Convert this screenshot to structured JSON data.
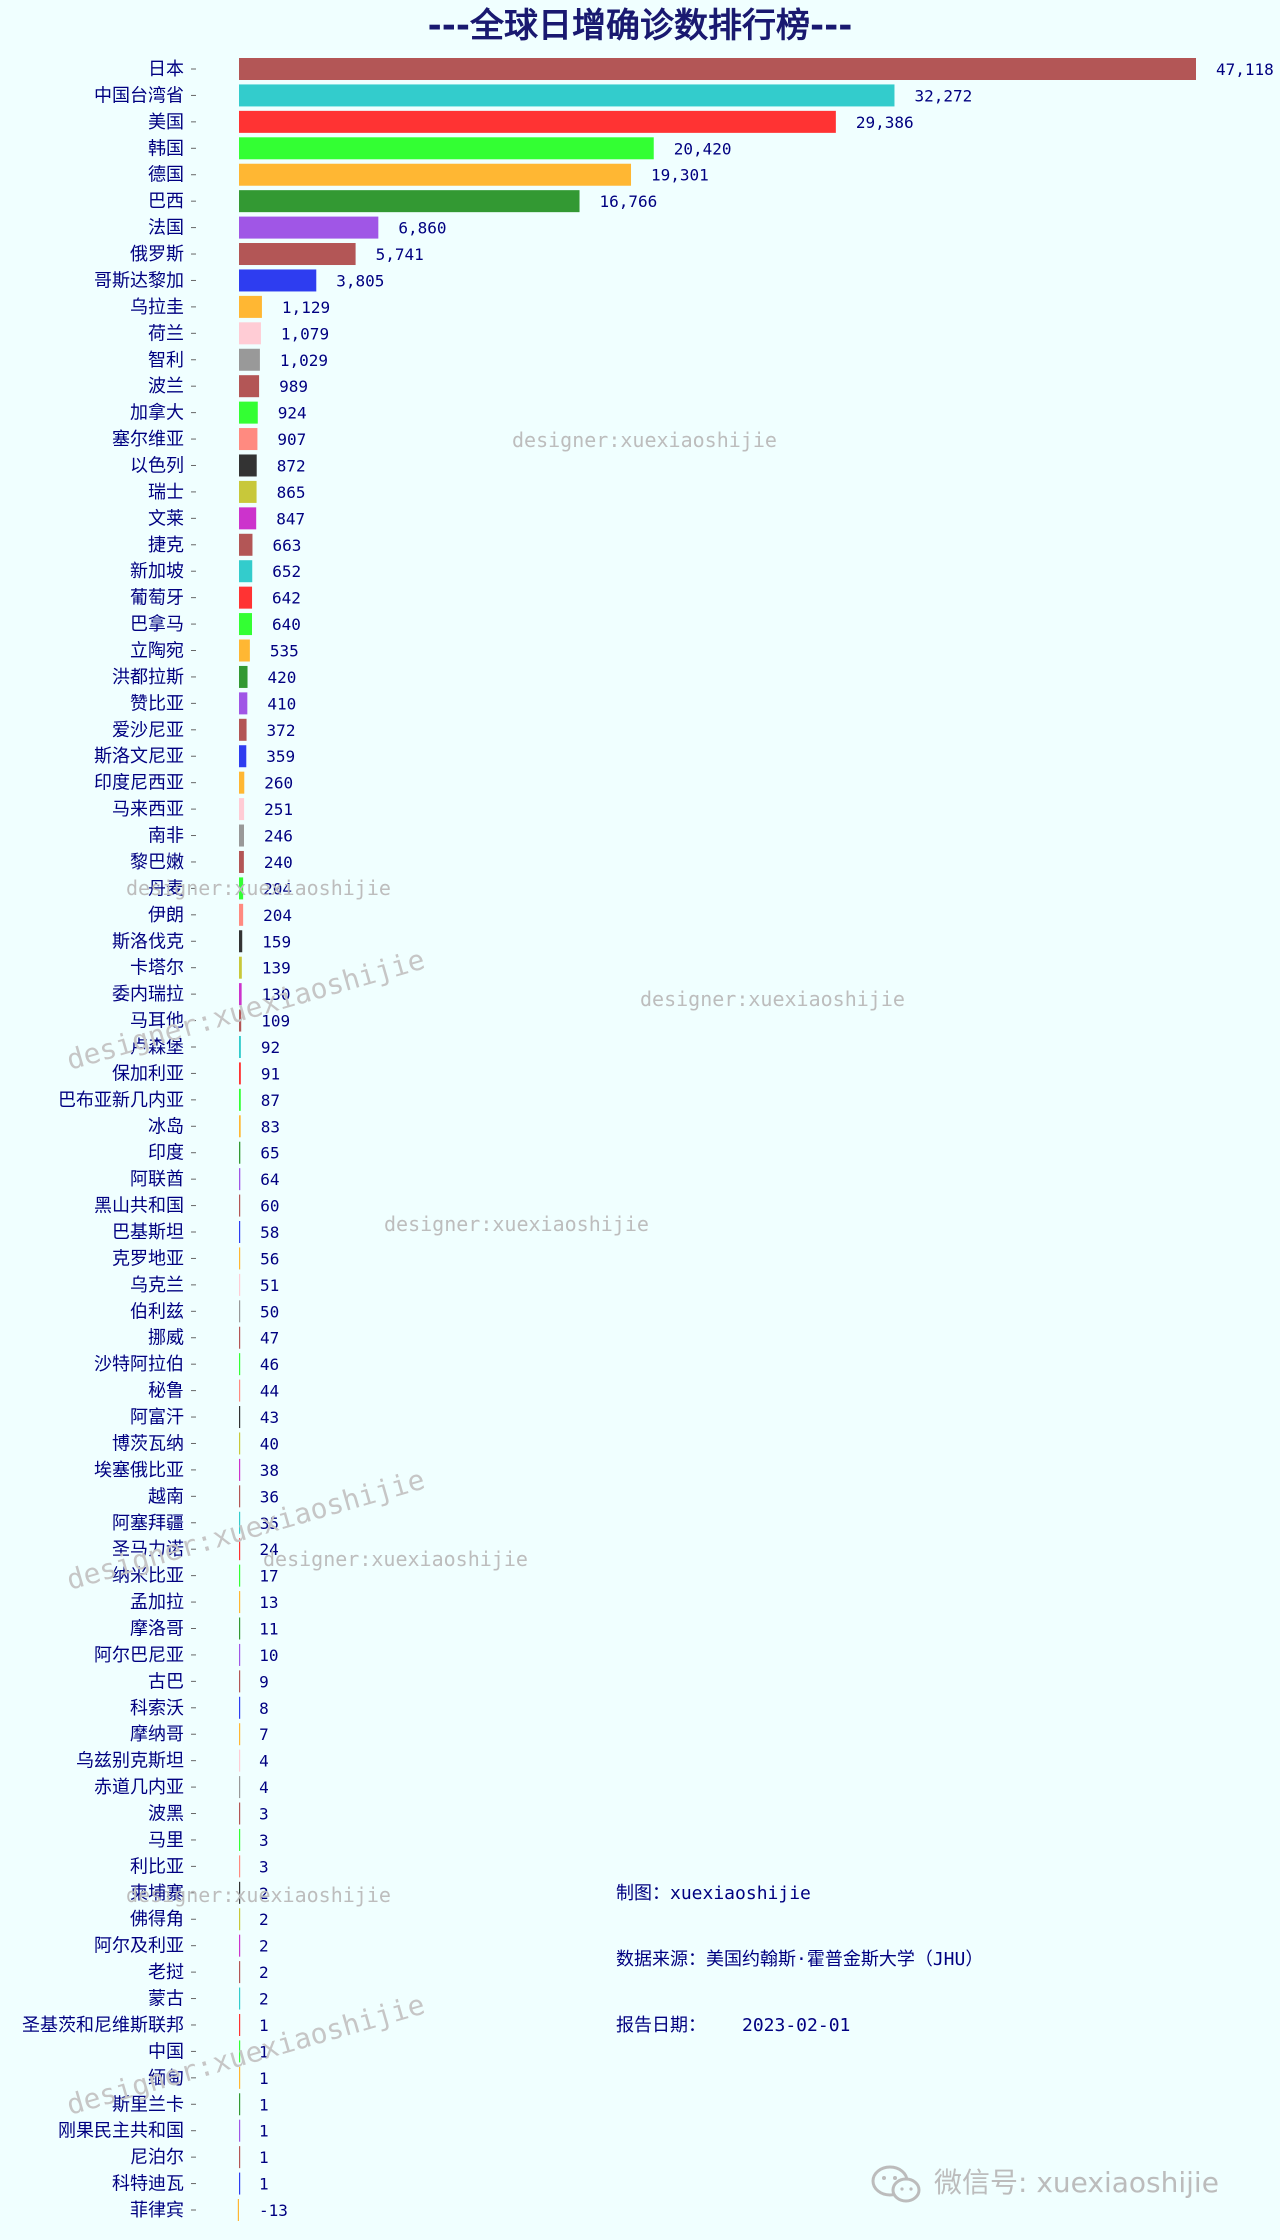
{
  "chart_data": {
    "type": "bar",
    "orientation": "horizontal",
    "title": "---全球日增确诊数排行榜---",
    "xlabel": "",
    "ylabel": "",
    "grid": false,
    "categories": [
      "日本",
      "中国台湾省",
      "美国",
      "韩国",
      "德国",
      "巴西",
      "法国",
      "俄罗斯",
      "哥斯达黎加",
      "乌拉圭",
      "荷兰",
      "智利",
      "波兰",
      "加拿大",
      "塞尔维亚",
      "以色列",
      "瑞士",
      "文莱",
      "捷克",
      "新加坡",
      "葡萄牙",
      "巴拿马",
      "立陶宛",
      "洪都拉斯",
      "赞比亚",
      "爱沙尼亚",
      "斯洛文尼亚",
      "印度尼西亚",
      "马来西亚",
      "南非",
      "黎巴嫩",
      "丹麦",
      "伊朗",
      "斯洛伐克",
      "卡塔尔",
      "委内瑞拉",
      "马耳他",
      "卢森堡",
      "保加利亚",
      "巴布亚新几内亚",
      "冰岛",
      "印度",
      "阿联酋",
      "黑山共和国",
      "巴基斯坦",
      "克罗地亚",
      "乌克兰",
      "伯利兹",
      "挪威",
      "沙特阿拉伯",
      "秘鲁",
      "阿富汗",
      "博茨瓦纳",
      "埃塞俄比亚",
      "越南",
      "阿塞拜疆",
      "圣马力诺",
      "纳米比亚",
      "孟加拉",
      "摩洛哥",
      "阿尔巴尼亚",
      "古巴",
      "科索沃",
      "摩纳哥",
      "乌兹别克斯坦",
      "赤道几内亚",
      "波黑",
      "马里",
      "利比亚",
      "柬埔寨",
      "佛得角",
      "阿尔及利亚",
      "老挝",
      "蒙古",
      "圣基茨和尼维斯联邦",
      "中国",
      "缅甸",
      "斯里兰卡",
      "刚果民主共和国",
      "尼泊尔",
      "科特迪瓦",
      "菲律宾"
    ],
    "values": [
      47118,
      32272,
      29386,
      20420,
      19301,
      16766,
      6860,
      5741,
      3805,
      1129,
      1079,
      1029,
      989,
      924,
      907,
      872,
      865,
      847,
      663,
      652,
      642,
      640,
      535,
      420,
      410,
      372,
      359,
      260,
      251,
      246,
      240,
      204,
      204,
      159,
      139,
      130,
      109,
      92,
      91,
      87,
      83,
      65,
      64,
      60,
      58,
      56,
      51,
      50,
      47,
      46,
      44,
      43,
      40,
      38,
      36,
      35,
      24,
      17,
      13,
      11,
      10,
      9,
      8,
      7,
      4,
      4,
      3,
      3,
      3,
      2,
      2,
      2,
      2,
      2,
      1,
      1,
      1,
      1,
      1,
      1,
      1,
      -13
    ],
    "value_labels": [
      "47,118",
      "32,272",
      "29,386",
      "20,420",
      "19,301",
      "16,766",
      "6,860",
      "5,741",
      "3,805",
      "1,129",
      "1,079",
      "1,029",
      "989",
      "924",
      "907",
      "872",
      "865",
      "847",
      "663",
      "652",
      "642",
      "640",
      "535",
      "420",
      "410",
      "372",
      "359",
      "260",
      "251",
      "246",
      "240",
      "204",
      "204",
      "159",
      "139",
      "130",
      "109",
      "92",
      "91",
      "87",
      "83",
      "65",
      "64",
      "60",
      "58",
      "56",
      "51",
      "50",
      "47",
      "46",
      "44",
      "43",
      "40",
      "38",
      "36",
      "35",
      "24",
      "17",
      "13",
      "11",
      "10",
      "9",
      "8",
      "7",
      "4",
      "4",
      "3",
      "3",
      "3",
      "2",
      "2",
      "2",
      "2",
      "2",
      "1",
      "1",
      "1",
      "1",
      "1",
      "1",
      "1",
      "-13"
    ],
    "colors": [
      "#b35656",
      "#33cccc",
      "#ff3333",
      "#33ff33",
      "#ffb733",
      "#339933",
      "#a056e6",
      "#b35656",
      "#2e3df0",
      "#ffb733",
      "#ffccd5",
      "#999999",
      "#b35656",
      "#33ff33",
      "#ff8a80",
      "#333333",
      "#c8c83a",
      "#cc33cc",
      "#b35656",
      "#33cccc",
      "#ff3333",
      "#33ff33",
      "#ffb733",
      "#339933",
      "#a056e6",
      "#b35656",
      "#2e3df0",
      "#ffb733",
      "#ffccd5",
      "#999999",
      "#b35656",
      "#33ff33",
      "#ff8a80",
      "#333333",
      "#c8c83a",
      "#cc33cc",
      "#b35656",
      "#33cccc",
      "#ff3333",
      "#33ff33",
      "#ffb733",
      "#339933",
      "#a056e6",
      "#b35656",
      "#2e3df0",
      "#ffb733",
      "#ffccd5",
      "#999999",
      "#b35656",
      "#33ff33",
      "#ff8a80",
      "#333333",
      "#c8c83a",
      "#cc33cc",
      "#b35656",
      "#33cccc",
      "#ff3333",
      "#33ff33",
      "#ffb733",
      "#339933",
      "#a056e6",
      "#b35656",
      "#2e3df0",
      "#ffb733",
      "#ffccd5",
      "#999999",
      "#b35656",
      "#33ff33",
      "#ff8a80",
      "#333333",
      "#c8c83a",
      "#cc33cc",
      "#b35656",
      "#33cccc",
      "#ff3333",
      "#33ff33",
      "#ffb733",
      "#339933",
      "#a056e6",
      "#b35656",
      "#2e3df0",
      "#ffb733"
    ],
    "xlim": [
      0,
      47118
    ]
  },
  "notes": {
    "author": "制图：xuexiaoshijie",
    "source": "数据来源：美国约翰斯·霍普金斯大学（JHU）",
    "date_label": "报告日期：",
    "date_value": "2023-02-01"
  },
  "watermark_text": "designer:xuexiaoshijie",
  "brand": {
    "text": "微信号: xuexiaoshijie",
    "icon": "wechat-icon"
  },
  "colors": {
    "background": "#f0ffff",
    "text": "#000080",
    "title": "#191970"
  }
}
